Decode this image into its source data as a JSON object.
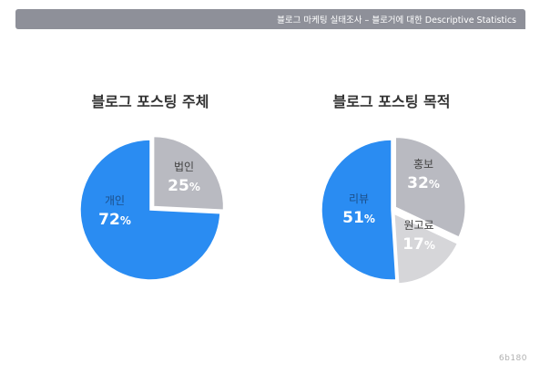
{
  "header": {
    "title": "블로그 마케팅 실태조사 – 블로거에 대한 Descriptive Statistics"
  },
  "watermark": "6b180",
  "colors": {
    "blue": "#2a8cf2",
    "gray": "#b9bac1",
    "light_gray": "#d6d6d9",
    "label_blue_text": "#1c4f8a",
    "label_gray_text": "#444444",
    "value_text": "#ffffff"
  },
  "chart_data": [
    {
      "type": "pie",
      "title": "블로그 포스팅 주체",
      "slices": [
        {
          "label": "개인",
          "value": 72,
          "display": "72%",
          "color": "#2a8cf2",
          "exploded": false
        },
        {
          "label": "법인",
          "value": 25,
          "display": "25%",
          "color": "#b9bac1",
          "exploded": true
        }
      ]
    },
    {
      "type": "pie",
      "title": "블로그 포스팅 목적",
      "slices": [
        {
          "label": "리뷰",
          "value": 51,
          "display": "51%",
          "color": "#2a8cf2",
          "exploded": false
        },
        {
          "label": "홍보",
          "value": 32,
          "display": "32%",
          "color": "#b9bac1",
          "exploded": true
        },
        {
          "label": "원고료",
          "value": 17,
          "display": "17%",
          "color": "#d6d6d9",
          "exploded": true
        }
      ]
    }
  ]
}
